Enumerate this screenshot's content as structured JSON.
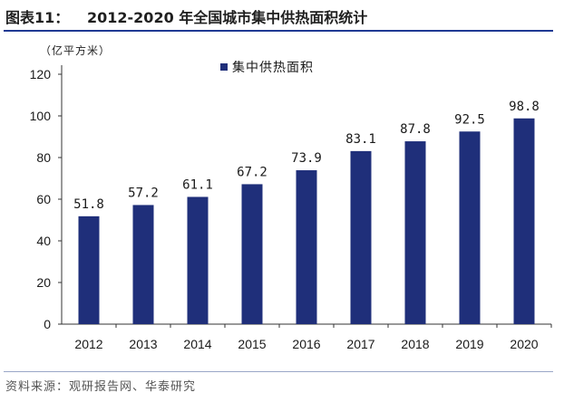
{
  "header": {
    "label": "图表11：",
    "title": "2012-2020 年全国城市集中供热面积统计"
  },
  "source": "资料来源：观研报告网、华泰研究",
  "colors": {
    "bar": "#1f2f7a",
    "rule": "#1f3a93"
  },
  "chart_data": {
    "type": "bar",
    "unit_label": "（亿平方米）",
    "categories": [
      "2012",
      "2013",
      "2014",
      "2015",
      "2016",
      "2017",
      "2018",
      "2019",
      "2020"
    ],
    "series": [
      {
        "name": "集中供热面积",
        "values": [
          51.8,
          57.2,
          61.1,
          67.2,
          73.9,
          83.1,
          87.8,
          92.5,
          98.8
        ]
      }
    ],
    "value_labels": [
      "51.8",
      "57.2",
      "61.1",
      "67.2",
      "73.9",
      "83.1",
      "87.8",
      "92.5",
      "98.8"
    ],
    "yticks": [
      "0",
      "20",
      "40",
      "60",
      "80",
      "100",
      "120"
    ],
    "ylim": [
      0,
      120
    ],
    "legend_position": "top-left",
    "grid": false
  }
}
